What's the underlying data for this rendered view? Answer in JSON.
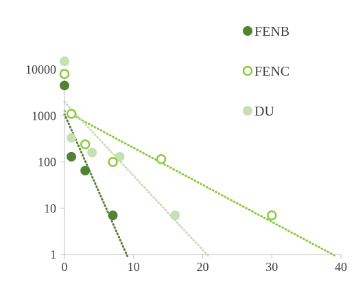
{
  "chart_data": {
    "type": "scatter",
    "title": "",
    "xlabel": "",
    "ylabel": "",
    "xlim": [
      0,
      40
    ],
    "ylim": [
      1,
      10000
    ],
    "y_scale": "log",
    "x_ticks": [
      0,
      10,
      20,
      30,
      40
    ],
    "x_tick_labels": [
      "0",
      "10",
      "20",
      "30",
      "40"
    ],
    "y_ticks": [
      1,
      10,
      100,
      1000,
      10000
    ],
    "y_tick_labels": [
      "1",
      "10",
      "100",
      "1000",
      "10000"
    ],
    "grid": false,
    "legend_position": "top-right",
    "series": [
      {
        "name": "FENB",
        "marker": "filled-circle",
        "color": "#548235",
        "trendline": "dotted",
        "points": [
          [
            0,
            4500
          ],
          [
            1,
            130
          ],
          [
            3,
            65
          ],
          [
            7,
            7
          ]
        ]
      },
      {
        "name": "FENC",
        "marker": "open-circle",
        "color": "#8ACB3F",
        "trendline": "dotted",
        "points": [
          [
            0,
            8000
          ],
          [
            1,
            1100
          ],
          [
            3,
            240
          ],
          [
            7,
            100
          ],
          [
            14,
            115
          ],
          [
            30,
            7
          ]
        ]
      },
      {
        "name": "DU",
        "marker": "filled-circle",
        "color": "#C5E0B4",
        "trendline": "dotted",
        "points": [
          [
            0,
            15000
          ],
          [
            1,
            330
          ],
          [
            4,
            160
          ],
          [
            8,
            130
          ],
          [
            16,
            7
          ]
        ]
      }
    ]
  }
}
